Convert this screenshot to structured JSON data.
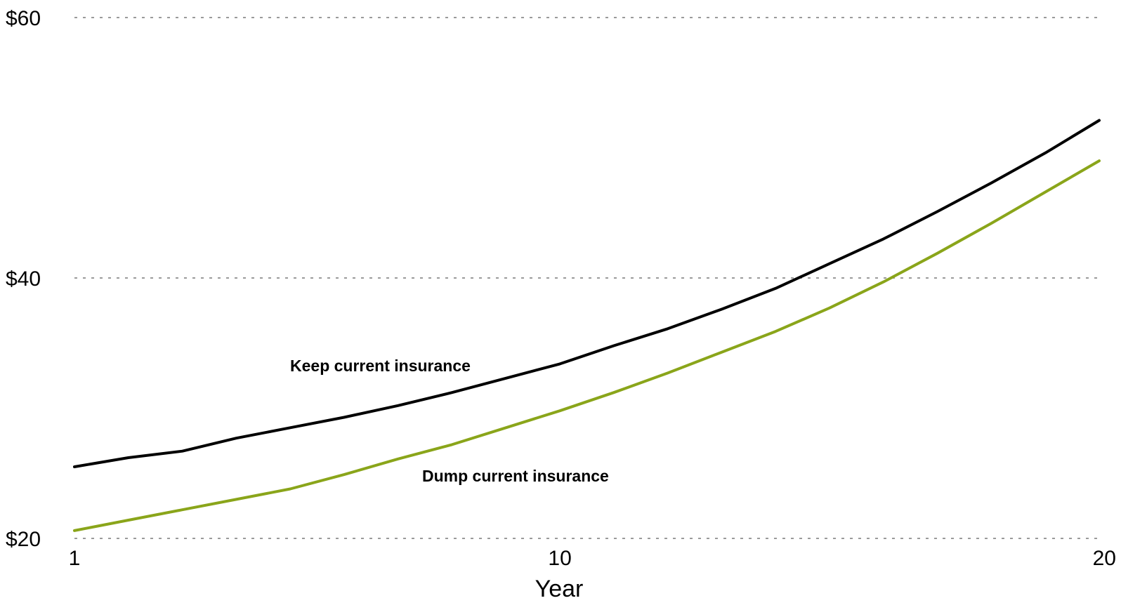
{
  "chart_data": {
    "type": "line",
    "xlabel": "Year",
    "x_ticks": [
      "1",
      "10",
      "20"
    ],
    "y_ticks": [
      "$20",
      "$40",
      "$60"
    ],
    "xlim": [
      1,
      20
    ],
    "ylim": [
      20,
      60
    ],
    "grid": true,
    "x": [
      1,
      2,
      3,
      4,
      5,
      6,
      7,
      8,
      9,
      10,
      11,
      12,
      13,
      14,
      15,
      16,
      17,
      18,
      19,
      20
    ],
    "series": [
      {
        "name": "Keep current insurance",
        "color": "#000000",
        "values": [
          25.5,
          26.2,
          26.7,
          27.7,
          28.5,
          29.3,
          30.2,
          31.2,
          32.3,
          33.4,
          34.8,
          36.1,
          37.6,
          39.2,
          41.1,
          43.0,
          45.1,
          47.3,
          49.6,
          52.1
        ]
      },
      {
        "name": "Dump current insurance",
        "color": "#8aa51a",
        "values": [
          20.6,
          21.4,
          22.2,
          23.0,
          23.8,
          24.9,
          26.1,
          27.2,
          28.5,
          29.8,
          31.2,
          32.7,
          34.3,
          35.9,
          37.7,
          39.7,
          41.9,
          44.2,
          46.6,
          49.0
        ]
      }
    ]
  }
}
